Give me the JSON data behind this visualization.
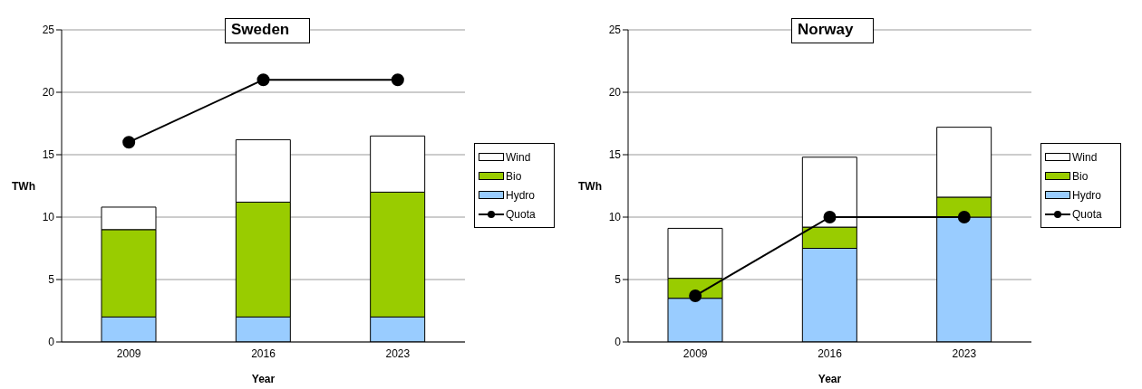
{
  "chart_data": [
    {
      "type": "bar",
      "title": "Sweden",
      "xlabel": "Year",
      "ylabel": "TWh",
      "categories": [
        "2009",
        "2016",
        "2023"
      ],
      "stacked": true,
      "series": [
        {
          "name": "Hydro",
          "color": "#99ccff",
          "values": [
            2,
            2,
            2
          ]
        },
        {
          "name": "Bio",
          "color": "#99cc00",
          "values": [
            7,
            9.2,
            10
          ]
        },
        {
          "name": "Wind",
          "color": "#ffffff",
          "values": [
            1.8,
            5,
            4.5
          ]
        },
        {
          "name": "Quota",
          "type": "line",
          "color": "#000000",
          "values": [
            16,
            21,
            21
          ]
        }
      ],
      "ylim": [
        0,
        25
      ],
      "yticks": [
        0,
        5,
        10,
        15,
        20,
        25
      ],
      "grid": "y",
      "legend": "right",
      "marker": "circle",
      "line_style": "solid"
    },
    {
      "type": "bar",
      "title": "Norway",
      "xlabel": "Year",
      "ylabel": "TWh",
      "categories": [
        "2009",
        "2016",
        "2023"
      ],
      "stacked": true,
      "series": [
        {
          "name": "Hydro",
          "color": "#99ccff",
          "values": [
            3.5,
            7.5,
            10
          ]
        },
        {
          "name": "Bio",
          "color": "#99cc00",
          "values": [
            1.6,
            1.7,
            1.6
          ]
        },
        {
          "name": "Wind",
          "color": "#ffffff",
          "values": [
            4,
            5.6,
            5.6
          ]
        },
        {
          "name": "Quota",
          "type": "line",
          "color": "#000000",
          "values": [
            3.7,
            10,
            10
          ]
        }
      ],
      "ylim": [
        0,
        25
      ],
      "yticks": [
        0,
        5,
        10,
        15,
        20,
        25
      ],
      "grid": "y",
      "legend": "right",
      "marker": "circle",
      "line_style": "solid"
    }
  ]
}
